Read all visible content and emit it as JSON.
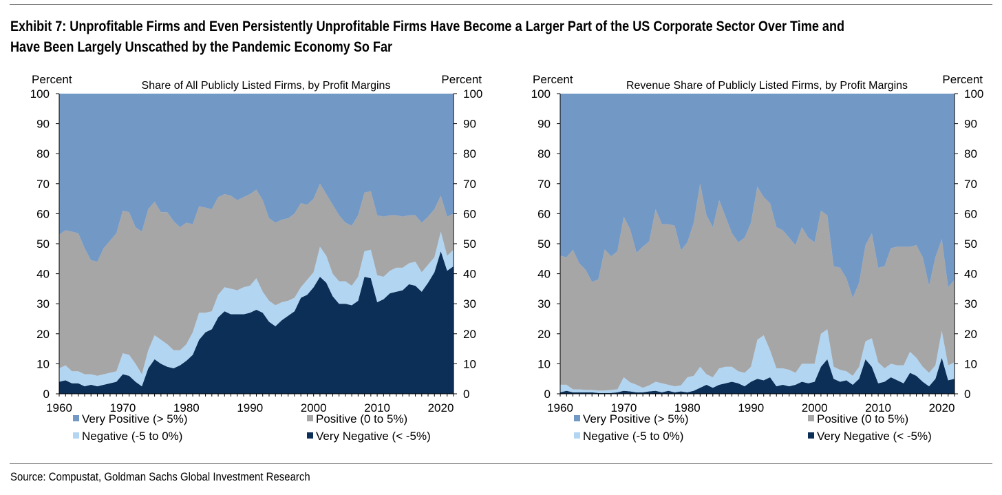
{
  "header": {
    "title_line1": "Exhibit 7: Unprofitable Firms and Even Persistently Unprofitable Firms Have Become a Larger Part of the US Corporate Sector Over Time and",
    "title_line2": "Have Been Largely Unscathed by the Pandemic Economy So Far"
  },
  "footer": {
    "source": "Source: Compustat, Goldman Sachs Global Investment Research"
  },
  "colors": {
    "very_positive": "#7298c6",
    "positive": "#a6a6a6",
    "negative": "#b2d5f2",
    "very_negative": "#0c2f57"
  },
  "chart_data": [
    {
      "type": "area",
      "stacked": true,
      "title": "Share of All Publicly Listed Firms, by Profit Margins",
      "ylabel_left": "Percent",
      "ylabel_right": "Percent",
      "xlabel": "",
      "xlim": [
        1960,
        2022
      ],
      "ylim": [
        0,
        100
      ],
      "x_ticks": [
        1960,
        1970,
        1980,
        1990,
        2000,
        2010,
        2020
      ],
      "y_ticks": [
        0,
        10,
        20,
        30,
        40,
        50,
        60,
        70,
        80,
        90,
        100
      ],
      "grid": false,
      "legend_position": "bottom",
      "x": [
        1960,
        1961,
        1962,
        1963,
        1964,
        1965,
        1966,
        1967,
        1968,
        1969,
        1970,
        1971,
        1972,
        1973,
        1974,
        1975,
        1976,
        1977,
        1978,
        1979,
        1980,
        1981,
        1982,
        1983,
        1984,
        1985,
        1986,
        1987,
        1988,
        1989,
        1990,
        1991,
        1992,
        1993,
        1994,
        1995,
        1996,
        1997,
        1998,
        1999,
        2000,
        2001,
        2002,
        2003,
        2004,
        2005,
        2006,
        2007,
        2008,
        2009,
        2010,
        2011,
        2012,
        2013,
        2014,
        2015,
        2016,
        2017,
        2018,
        2019,
        2020,
        2021,
        2022
      ],
      "series": [
        {
          "name": "Very Negative (< -5%)",
          "color_key": "very_negative",
          "values": [
            4,
            4.5,
            3.5,
            3.5,
            2.5,
            3,
            2.5,
            3,
            3.5,
            4,
            6.5,
            6,
            4,
            2.5,
            8.5,
            11.5,
            10,
            9,
            8.5,
            9.5,
            11,
            13,
            18,
            20.5,
            21.5,
            25.5,
            27.5,
            26.5,
            26.5,
            26.5,
            27,
            28,
            27,
            24,
            22.5,
            24.5,
            26,
            27.5,
            32,
            33,
            35.5,
            39,
            37,
            32.5,
            30,
            30,
            29.5,
            31,
            39,
            38.5,
            30.5,
            31.5,
            33.5,
            34,
            34.5,
            36.5,
            36,
            34,
            37,
            40.5,
            47.5,
            41,
            42.5
          ]
        },
        {
          "name": "Negative (-5 to 0%)",
          "color_key": "negative",
          "values": [
            4.5,
            5,
            4,
            4,
            4,
            3.5,
            3.5,
            3.5,
            3.5,
            3.5,
            7,
            7,
            6,
            4,
            6,
            8,
            8,
            7.5,
            6,
            5,
            5.5,
            7.5,
            9,
            6.5,
            6,
            7.5,
            8,
            8.5,
            8,
            9,
            9,
            10.5,
            7,
            7,
            7,
            6,
            5,
            4.5,
            3.5,
            5,
            5,
            10,
            9,
            7.5,
            7.5,
            7.5,
            6.5,
            8,
            8.5,
            9.5,
            9,
            7.5,
            7.5,
            8,
            7.5,
            7,
            8,
            6.5,
            6,
            5,
            6.5,
            5,
            5.5
          ]
        },
        {
          "name": "Positive (0 to 5%)",
          "color_key": "positive",
          "values": [
            44.5,
            45,
            46.5,
            46,
            42,
            38,
            38,
            42,
            44,
            46,
            47.5,
            47.5,
            45.5,
            47.5,
            47,
            44.5,
            42.5,
            44,
            43,
            41,
            40.5,
            36,
            35.5,
            35,
            34,
            32.5,
            31,
            31,
            30,
            30,
            30.5,
            29.5,
            30.5,
            27.5,
            27.5,
            27.5,
            27.5,
            28,
            28,
            25,
            24.5,
            21,
            20.5,
            23,
            22,
            19.5,
            20,
            20.5,
            19.5,
            19.5,
            20,
            20,
            18.5,
            17.5,
            17,
            16,
            15.5,
            16.5,
            16,
            16,
            12,
            13,
            12
          ]
        },
        {
          "name": "Very Positive (> 5%)",
          "color_key": "very_positive",
          "values": [
            47,
            45.5,
            46,
            46.5,
            51.5,
            55.5,
            56,
            51.5,
            49,
            46.5,
            39,
            39.5,
            44.5,
            46,
            38.5,
            36,
            39.5,
            39.5,
            42.5,
            44.5,
            43,
            43.5,
            37.5,
            38,
            38.5,
            34.5,
            33.5,
            34,
            35.5,
            34.5,
            33.5,
            32,
            35.5,
            41.5,
            43,
            42,
            41.5,
            40,
            36.5,
            37,
            35,
            30,
            33.5,
            37,
            40.5,
            43,
            44,
            40.5,
            33,
            32.5,
            40.5,
            41,
            40.5,
            40.5,
            41,
            40.5,
            40.5,
            43,
            41,
            38.5,
            34,
            41,
            40
          ]
        }
      ]
    },
    {
      "type": "area",
      "stacked": true,
      "title": "Revenue Share of Publicly Listed Firms, by Profit Margins",
      "ylabel_left": "Percent",
      "ylabel_right": "Percent",
      "xlabel": "",
      "xlim": [
        1960,
        2022
      ],
      "ylim": [
        0,
        100
      ],
      "x_ticks": [
        1960,
        1970,
        1980,
        1990,
        2000,
        2010,
        2020
      ],
      "y_ticks": [
        0,
        10,
        20,
        30,
        40,
        50,
        60,
        70,
        80,
        90,
        100
      ],
      "grid": false,
      "legend_position": "bottom",
      "x": [
        1960,
        1961,
        1962,
        1963,
        1964,
        1965,
        1966,
        1967,
        1968,
        1969,
        1970,
        1971,
        1972,
        1973,
        1974,
        1975,
        1976,
        1977,
        1978,
        1979,
        1980,
        1981,
        1982,
        1983,
        1984,
        1985,
        1986,
        1987,
        1988,
        1989,
        1990,
        1991,
        1992,
        1993,
        1994,
        1995,
        1996,
        1997,
        1998,
        1999,
        2000,
        2001,
        2002,
        2003,
        2004,
        2005,
        2006,
        2007,
        2008,
        2009,
        2010,
        2011,
        2012,
        2013,
        2014,
        2015,
        2016,
        2017,
        2018,
        2019,
        2020,
        2021,
        2022
      ],
      "series": [
        {
          "name": "Very Negative (< -5%)",
          "color_key": "very_negative",
          "values": [
            0.5,
            1,
            0.5,
            0.5,
            0.5,
            0.5,
            0.3,
            0.3,
            0.3,
            0.5,
            1,
            0.8,
            0.5,
            0.5,
            0.8,
            1,
            0.5,
            1,
            0.5,
            0.8,
            0.5,
            1,
            2,
            3,
            2,
            3,
            3.5,
            4,
            3.5,
            2.5,
            4,
            5,
            4.5,
            5.5,
            2.5,
            3,
            2.5,
            3,
            4,
            3.5,
            4,
            9,
            11.5,
            5,
            4,
            4.5,
            3,
            5,
            11.5,
            9,
            3.5,
            4,
            5.5,
            4.5,
            3.5,
            7,
            6,
            4,
            2.5,
            5,
            12,
            4.5,
            5
          ]
        },
        {
          "name": "Negative (-5 to 0%)",
          "color_key": "negative",
          "values": [
            2.5,
            2,
            1,
            1,
            0.8,
            0.8,
            0.8,
            0.8,
            1,
            1,
            4.5,
            3,
            2.5,
            1.5,
            2,
            3,
            3,
            2,
            2,
            2,
            5,
            5,
            7,
            3.5,
            3.5,
            5.5,
            5.5,
            5,
            4,
            4.5,
            5,
            13,
            15,
            9,
            6,
            5.5,
            5.5,
            4,
            6,
            6.5,
            6,
            11,
            10,
            4,
            4,
            3,
            3,
            4,
            6,
            9.5,
            7,
            4.5,
            4.5,
            5,
            6,
            7,
            6,
            5,
            4.5,
            4.5,
            9,
            5,
            5.5
          ]
        },
        {
          "name": "Positive (0 to 5%)",
          "color_key": "positive",
          "values": [
            43,
            42.5,
            46.5,
            42,
            40,
            36,
            37,
            47,
            44.5,
            46,
            53.5,
            51,
            44,
            47,
            48,
            57.5,
            53,
            53.5,
            53.5,
            45,
            45,
            51,
            61,
            53,
            50,
            56,
            50,
            44.5,
            43,
            45,
            48,
            51,
            46,
            49,
            47,
            46,
            44,
            42.5,
            45.5,
            42,
            40.5,
            41,
            38,
            33.5,
            34,
            31,
            26,
            28,
            32,
            35,
            31.5,
            34,
            38.5,
            39.5,
            39.5,
            35,
            37.5,
            36.5,
            29,
            36,
            30.5,
            26,
            27.5
          ]
        },
        {
          "name": "Very Positive (> 5%)",
          "color_key": "very_positive",
          "values": [
            54,
            54.5,
            52,
            56.5,
            58.7,
            62.7,
            61.9,
            51.9,
            54.2,
            52.5,
            41,
            45.2,
            53,
            51,
            49.2,
            38.5,
            43.5,
            43.5,
            44,
            52.2,
            49.5,
            43,
            30,
            40.5,
            44.5,
            35.5,
            41,
            46.5,
            49.5,
            48,
            43,
            31,
            34.5,
            36.5,
            44.5,
            45.5,
            48,
            50.5,
            44.5,
            48,
            49.5,
            39,
            40.5,
            57.5,
            58,
            61.5,
            68,
            63,
            50.5,
            46.5,
            58,
            57.5,
            51.5,
            51,
            51,
            51,
            50.5,
            54.5,
            64,
            54.5,
            48.5,
            64.5,
            62
          ]
        }
      ]
    }
  ]
}
